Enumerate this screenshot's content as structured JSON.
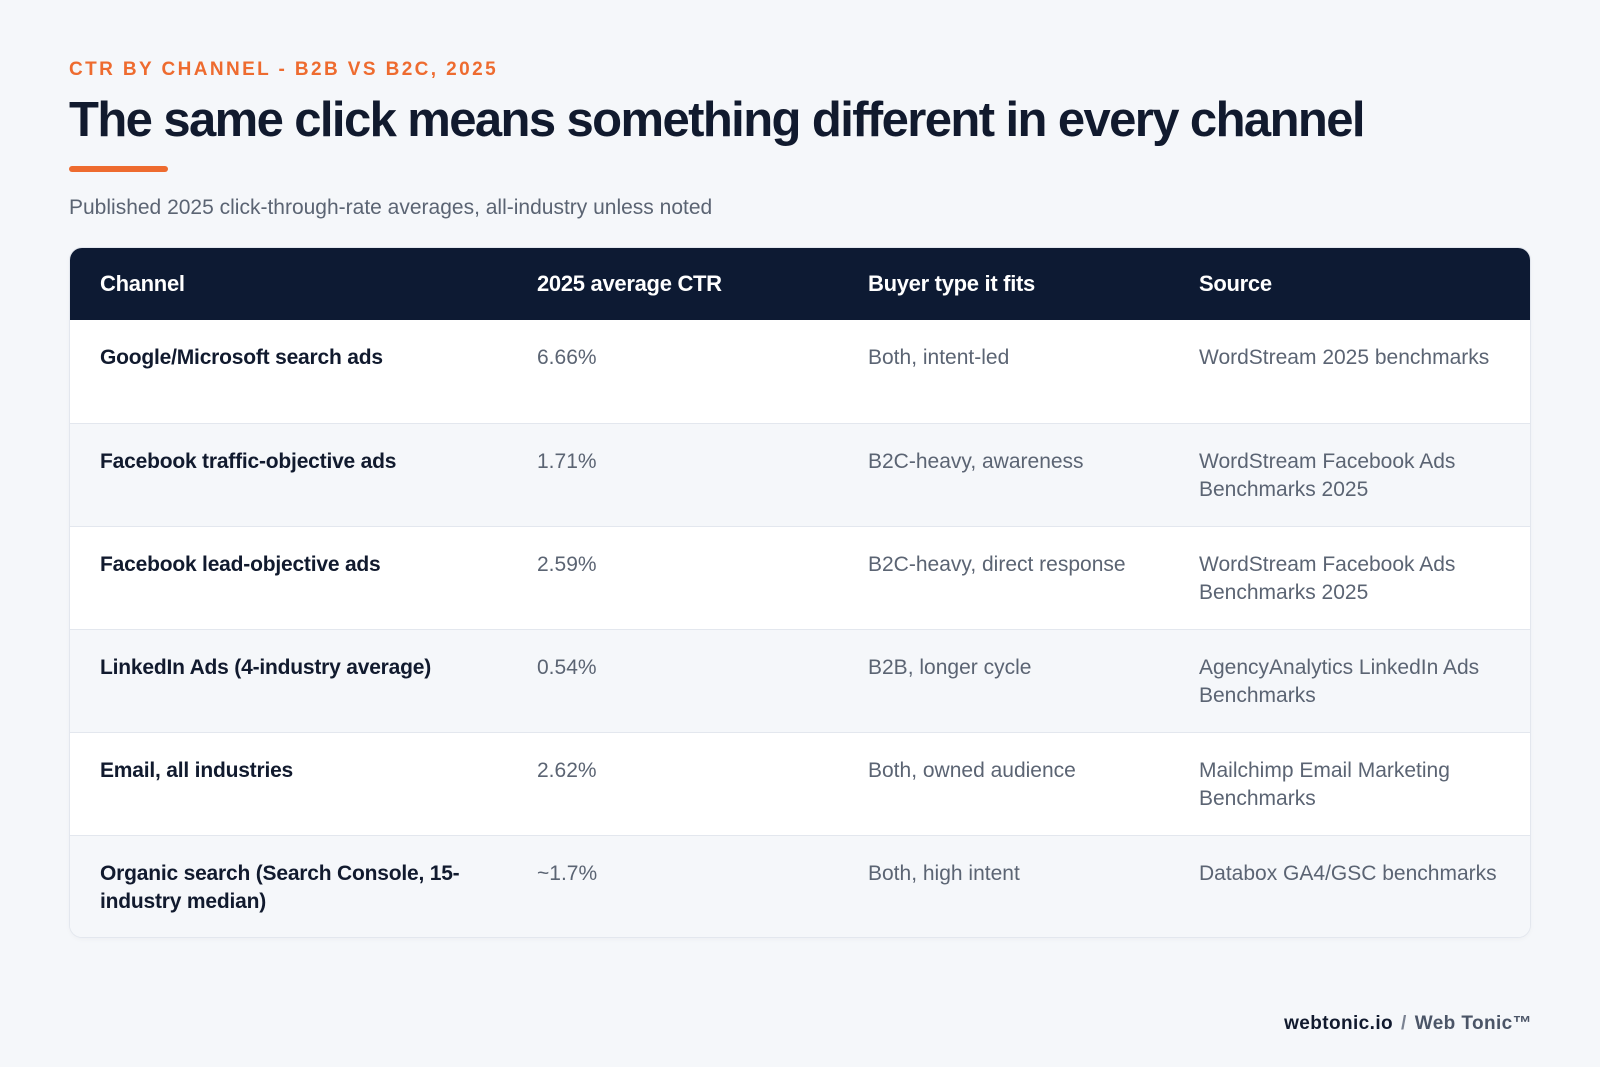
{
  "header": {
    "kicker": "CTR BY CHANNEL - B2B VS B2C, 2025",
    "title": "The same click means something different in every channel",
    "subtitle": "Published 2025 click-through-rate averages, all-industry unless noted"
  },
  "colors": {
    "accent": "#ee6b2f",
    "header_bg": "#0d1a33",
    "text_dark": "#111a2e",
    "text_muted": "#5b6473"
  },
  "chart_data": {
    "type": "table",
    "columns": [
      "Channel",
      "2025 average CTR",
      "Buyer type it fits",
      "Source"
    ],
    "rows": [
      [
        "Google/Microsoft search ads",
        "6.66%",
        "Both, intent-led",
        "WordStream 2025 benchmarks"
      ],
      [
        "Facebook traffic-objective ads",
        "1.71%",
        "B2C-heavy, awareness",
        "WordStream Facebook Ads Benchmarks 2025"
      ],
      [
        "Facebook lead-objective ads",
        "2.59%",
        "B2C-heavy, direct response",
        "WordStream Facebook Ads Benchmarks 2025"
      ],
      [
        "LinkedIn Ads (4-industry average)",
        "0.54%",
        "B2B, longer cycle",
        "AgencyAnalytics LinkedIn Ads Benchmarks"
      ],
      [
        "Email, all industries",
        "2.62%",
        "Both, owned audience",
        "Mailchimp Email Marketing Benchmarks"
      ],
      [
        "Organic search (Search Console, 15-industry median)",
        "~1.7%",
        "Both, high intent",
        "Databox GA4/GSC benchmarks"
      ]
    ]
  },
  "footer": {
    "domain": "webtonic.io",
    "separator": "/",
    "brand": "Web Tonic™"
  }
}
